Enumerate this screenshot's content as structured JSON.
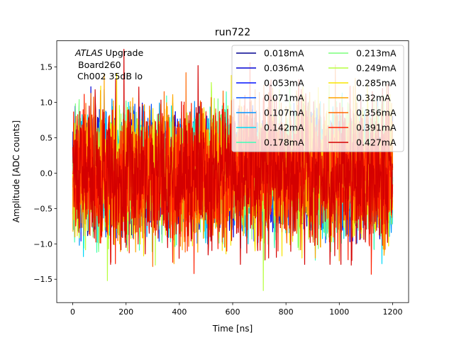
{
  "chart_data": {
    "type": "line",
    "title": "run722",
    "xlabel": "Time [ns]",
    "ylabel": "Amplitude [ADC counts]",
    "xlim": [
      -60,
      1260
    ],
    "ylim": [
      -1.83,
      1.87
    ],
    "xticks": [
      0,
      200,
      400,
      600,
      800,
      1000,
      1200
    ],
    "xtick_labels": [
      "0",
      "200",
      "400",
      "600",
      "800",
      "1000",
      "1200"
    ],
    "yticks": [
      -1.5,
      -1.0,
      -0.5,
      0.0,
      0.5,
      1.0,
      1.5
    ],
    "ytick_labels": [
      "−1.5",
      "−1.0",
      "−0.5",
      "0.0",
      "0.5",
      "1.0",
      "1.5"
    ],
    "grid": false,
    "legend_position": "top-right",
    "legend_columns": 2,
    "annotation_lines": [
      "ATLAS",
      "Upgrade",
      "Board260",
      "Ch002 35dB lo"
    ],
    "series": [
      {
        "name": "0.018mA",
        "color": "#00008f",
        "amp": 0.32,
        "seed": 11,
        "peaks": [
          [
            50,
            0.62
          ],
          [
            130,
            0.58
          ],
          [
            160,
            0.71
          ],
          [
            40,
            -0.82
          ],
          [
            860,
            0.42
          ],
          [
            1170,
            -0.76
          ]
        ]
      },
      {
        "name": "0.036mA",
        "color": "#0000d4",
        "amp": 0.33,
        "seed": 23,
        "peaks": [
          [
            68,
            1.22
          ],
          [
            95,
            0.78
          ],
          [
            445,
            0.68
          ],
          [
            1000,
            0.73
          ],
          [
            1040,
            -0.97
          ],
          [
            270,
            -0.71
          ]
        ]
      },
      {
        "name": "0.053mA",
        "color": "#0010ff",
        "amp": 0.33,
        "seed": 37,
        "peaks": [
          [
            118,
            1.18
          ],
          [
            125,
            -0.78
          ],
          [
            505,
            -0.92
          ],
          [
            810,
            0.6
          ]
        ]
      },
      {
        "name": "0.071mA",
        "color": "#0050ff",
        "amp": 0.34,
        "seed": 41,
        "peaks": [
          [
            100,
            0.9
          ],
          [
            335,
            -0.95
          ],
          [
            520,
            -0.94
          ],
          [
            1120,
            -0.94
          ],
          [
            775,
            0.72
          ]
        ]
      },
      {
        "name": "0.107mA",
        "color": "#0094ff",
        "amp": 0.35,
        "seed": 53,
        "peaks": [
          [
            25,
            -1.02
          ],
          [
            265,
            0.95
          ],
          [
            630,
            -1.06
          ],
          [
            1195,
            -0.84
          ]
        ]
      },
      {
        "name": "0.142mA",
        "color": "#00d8f8",
        "amp": 0.36,
        "seed": 67,
        "peaks": [
          [
            40,
            -1.18
          ],
          [
            150,
            0.94
          ],
          [
            370,
            0.95
          ],
          [
            1160,
            -1.28
          ],
          [
            920,
            0.9
          ]
        ]
      },
      {
        "name": "0.178mA",
        "color": "#3fffb7",
        "amp": 0.37,
        "seed": 71,
        "peaks": [
          [
            90,
            -1.12
          ],
          [
            250,
            -1.09
          ],
          [
            850,
            1.07
          ],
          [
            910,
            -1.23
          ],
          [
            1130,
            -1.07
          ]
        ]
      },
      {
        "name": "0.213mA",
        "color": "#7aff7c",
        "amp": 0.38,
        "seed": 83,
        "peaks": [
          [
            200,
            1.02
          ],
          [
            545,
            1.05
          ],
          [
            720,
            -1.23
          ],
          [
            990,
            1.01
          ]
        ]
      },
      {
        "name": "0.249mA",
        "color": "#b7ff3f",
        "amp": 0.39,
        "seed": 97,
        "peaks": [
          [
            130,
            -1.52
          ],
          [
            205,
            -1.1
          ],
          [
            310,
            -1.3
          ],
          [
            715,
            -1.66
          ],
          [
            520,
            1.28
          ],
          [
            1130,
            1.05
          ]
        ]
      },
      {
        "name": "0.285mA",
        "color": "#f8e500",
        "amp": 0.4,
        "seed": 101,
        "peaks": [
          [
            165,
            1.4
          ],
          [
            595,
            1.38
          ],
          [
            860,
            -1.2
          ],
          [
            1105,
            1.27
          ],
          [
            1185,
            -1.03
          ]
        ]
      },
      {
        "name": "0.32mA",
        "color": "#ffa400",
        "amp": 0.4,
        "seed": 113,
        "peaks": [
          [
            118,
            1.4
          ],
          [
            380,
            -1.28
          ],
          [
            750,
            1.2
          ],
          [
            1060,
            1.34
          ],
          [
            1000,
            -1.24
          ]
        ]
      },
      {
        "name": "0.356mA",
        "color": "#ff6800",
        "amp": 0.41,
        "seed": 127,
        "peaks": [
          [
            300,
            -1.32
          ],
          [
            425,
            1.42
          ],
          [
            570,
            -1.04
          ],
          [
            700,
            1.14
          ],
          [
            985,
            1.53
          ]
        ]
      },
      {
        "name": "0.391mA",
        "color": "#ff2000",
        "amp": 0.42,
        "seed": 131,
        "peaks": [
          [
            160,
            -1.28
          ],
          [
            455,
            -1.42
          ],
          [
            665,
            1.56
          ],
          [
            770,
            -1.1
          ],
          [
            1120,
            -1.43
          ],
          [
            1040,
            1.22
          ]
        ]
      },
      {
        "name": "0.427mA",
        "color": "#d40000",
        "amp": 0.42,
        "seed": 139,
        "peaks": [
          [
            192,
            1.75
          ],
          [
            200,
            -1.05
          ],
          [
            470,
            1.52
          ],
          [
            735,
            -1.2
          ],
          [
            1045,
            -1.3
          ]
        ]
      }
    ]
  }
}
